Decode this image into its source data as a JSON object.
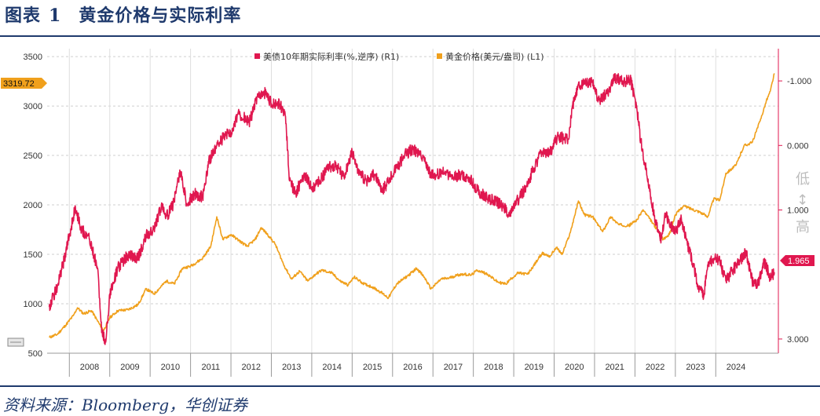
{
  "figure": {
    "label": "图表",
    "number": "1",
    "title": "黄金价格与实际利率",
    "source": "资料来源：Bloomberg，华创证券"
  },
  "colors": {
    "gold": "#f0a01c",
    "rate": "#e0174f",
    "title_blue": "#1f3a6d"
  },
  "chart_data": {
    "type": "line",
    "x_categories": [
      "2008",
      "2009",
      "2010",
      "2011",
      "2012",
      "2013",
      "2014",
      "2015",
      "2016",
      "2017",
      "2018",
      "2019",
      "2020",
      "2021",
      "2022",
      "2023",
      "2024"
    ],
    "x_range": [
      2007.45,
      2025.55
    ],
    "y_left": {
      "ticks": [
        500,
        1000,
        1500,
        2000,
        2500,
        3000,
        3500
      ],
      "tick_labels": [
        "500",
        "1000",
        "1500",
        "2000",
        "2500",
        "3000",
        "3500"
      ],
      "range": [
        500,
        3580
      ]
    },
    "y_right": {
      "ticks": [
        -1.0,
        0.0,
        1.0,
        3.0
      ],
      "tick_labels": [
        "-1.000",
        "0.000",
        "1.000",
        "3.000"
      ],
      "range": [
        -1.5,
        3.22
      ],
      "reversed": true
    },
    "side_labels": {
      "top": "低",
      "middle": "↔",
      "bottom": "高"
    },
    "legend": [
      "美债10年期实际利率(%,逆序) (R1)",
      "黄金价格(美元/盎司) (L1)"
    ],
    "last_value_tags": {
      "gold": "3319.72",
      "rate": "1.965"
    },
    "grid": "horizontal dashed",
    "series": [
      {
        "name": "黄金价格(美元/盎司) (L1)",
        "axis": "left",
        "points": [
          [
            2007.5,
            660
          ],
          [
            2007.7,
            690
          ],
          [
            2007.9,
            780
          ],
          [
            2008.1,
            880
          ],
          [
            2008.2,
            960
          ],
          [
            2008.35,
            900
          ],
          [
            2008.55,
            930
          ],
          [
            2008.75,
            790
          ],
          [
            2008.85,
            730
          ],
          [
            2009.0,
            860
          ],
          [
            2009.2,
            930
          ],
          [
            2009.45,
            940
          ],
          [
            2009.7,
            990
          ],
          [
            2009.9,
            1150
          ],
          [
            2010.1,
            1100
          ],
          [
            2010.4,
            1230
          ],
          [
            2010.6,
            1200
          ],
          [
            2010.8,
            1360
          ],
          [
            2011.0,
            1380
          ],
          [
            2011.3,
            1460
          ],
          [
            2011.5,
            1580
          ],
          [
            2011.65,
            1880
          ],
          [
            2011.8,
            1650
          ],
          [
            2012.0,
            1700
          ],
          [
            2012.2,
            1640
          ],
          [
            2012.4,
            1580
          ],
          [
            2012.6,
            1650
          ],
          [
            2012.75,
            1770
          ],
          [
            2012.95,
            1680
          ],
          [
            2013.1,
            1600
          ],
          [
            2013.3,
            1400
          ],
          [
            2013.5,
            1250
          ],
          [
            2013.7,
            1330
          ],
          [
            2013.9,
            1230
          ],
          [
            2014.1,
            1300
          ],
          [
            2014.25,
            1340
          ],
          [
            2014.5,
            1310
          ],
          [
            2014.7,
            1230
          ],
          [
            2014.9,
            1190
          ],
          [
            2015.05,
            1270
          ],
          [
            2015.3,
            1200
          ],
          [
            2015.5,
            1170
          ],
          [
            2015.7,
            1120
          ],
          [
            2015.9,
            1060
          ],
          [
            2016.1,
            1200
          ],
          [
            2016.4,
            1290
          ],
          [
            2016.6,
            1360
          ],
          [
            2016.8,
            1260
          ],
          [
            2016.95,
            1150
          ],
          [
            2017.2,
            1250
          ],
          [
            2017.4,
            1260
          ],
          [
            2017.6,
            1290
          ],
          [
            2017.75,
            1300
          ],
          [
            2017.95,
            1290
          ],
          [
            2018.1,
            1340
          ],
          [
            2018.35,
            1300
          ],
          [
            2018.6,
            1220
          ],
          [
            2018.8,
            1200
          ],
          [
            2018.95,
            1260
          ],
          [
            2019.1,
            1310
          ],
          [
            2019.35,
            1300
          ],
          [
            2019.55,
            1420
          ],
          [
            2019.7,
            1510
          ],
          [
            2019.9,
            1480
          ],
          [
            2020.05,
            1570
          ],
          [
            2020.2,
            1500
          ],
          [
            2020.4,
            1720
          ],
          [
            2020.6,
            2040
          ],
          [
            2020.75,
            1900
          ],
          [
            2020.95,
            1880
          ],
          [
            2021.2,
            1730
          ],
          [
            2021.4,
            1880
          ],
          [
            2021.6,
            1800
          ],
          [
            2021.85,
            1790
          ],
          [
            2022.05,
            1850
          ],
          [
            2022.2,
            1950
          ],
          [
            2022.45,
            1810
          ],
          [
            2022.7,
            1650
          ],
          [
            2022.85,
            1700
          ],
          [
            2023.0,
            1900
          ],
          [
            2023.2,
            1990
          ],
          [
            2023.4,
            1960
          ],
          [
            2023.6,
            1930
          ],
          [
            2023.8,
            1880
          ],
          [
            2023.95,
            2060
          ],
          [
            2024.1,
            2050
          ],
          [
            2024.25,
            2320
          ],
          [
            2024.5,
            2400
          ],
          [
            2024.7,
            2600
          ],
          [
            2024.9,
            2630
          ],
          [
            2025.1,
            2850
          ],
          [
            2025.25,
            3050
          ],
          [
            2025.35,
            3150
          ],
          [
            2025.45,
            3330
          ]
        ]
      },
      {
        "name": "美债10年期实际利率(%,逆序) (R1)",
        "axis": "right",
        "points": [
          [
            2007.5,
            2.5
          ],
          [
            2007.7,
            2.2
          ],
          [
            2007.9,
            1.7
          ],
          [
            2008.05,
            1.25
          ],
          [
            2008.15,
            0.95
          ],
          [
            2008.3,
            1.3
          ],
          [
            2008.5,
            1.45
          ],
          [
            2008.7,
            1.9
          ],
          [
            2008.8,
            2.9
          ],
          [
            2008.9,
            3.05
          ],
          [
            2009.0,
            2.3
          ],
          [
            2009.2,
            1.9
          ],
          [
            2009.45,
            1.7
          ],
          [
            2009.7,
            1.75
          ],
          [
            2009.9,
            1.4
          ],
          [
            2010.1,
            1.3
          ],
          [
            2010.3,
            0.9
          ],
          [
            2010.4,
            1.1
          ],
          [
            2010.55,
            0.95
          ],
          [
            2010.75,
            0.4
          ],
          [
            2010.9,
            0.9
          ],
          [
            2011.1,
            0.75
          ],
          [
            2011.3,
            0.8
          ],
          [
            2011.45,
            0.25
          ],
          [
            2011.65,
            0.0
          ],
          [
            2011.85,
            -0.15
          ],
          [
            2012.0,
            -0.2
          ],
          [
            2012.2,
            -0.5
          ],
          [
            2012.45,
            -0.35
          ],
          [
            2012.65,
            -0.75
          ],
          [
            2012.85,
            -0.82
          ],
          [
            2013.0,
            -0.65
          ],
          [
            2013.2,
            -0.65
          ],
          [
            2013.35,
            -0.45
          ],
          [
            2013.45,
            0.55
          ],
          [
            2013.6,
            0.75
          ],
          [
            2013.8,
            0.45
          ],
          [
            2014.0,
            0.65
          ],
          [
            2014.2,
            0.55
          ],
          [
            2014.4,
            0.35
          ],
          [
            2014.6,
            0.3
          ],
          [
            2014.8,
            0.5
          ],
          [
            2015.0,
            0.1
          ],
          [
            2015.15,
            0.4
          ],
          [
            2015.35,
            0.55
          ],
          [
            2015.55,
            0.45
          ],
          [
            2015.75,
            0.7
          ],
          [
            2015.9,
            0.55
          ],
          [
            2016.1,
            0.35
          ],
          [
            2016.3,
            0.15
          ],
          [
            2016.5,
            0.05
          ],
          [
            2016.7,
            0.15
          ],
          [
            2016.95,
            0.45
          ],
          [
            2017.1,
            0.45
          ],
          [
            2017.3,
            0.4
          ],
          [
            2017.5,
            0.5
          ],
          [
            2017.7,
            0.45
          ],
          [
            2017.9,
            0.5
          ],
          [
            2018.1,
            0.7
          ],
          [
            2018.3,
            0.8
          ],
          [
            2018.5,
            0.85
          ],
          [
            2018.75,
            0.95
          ],
          [
            2018.9,
            1.1
          ],
          [
            2019.05,
            0.9
          ],
          [
            2019.3,
            0.65
          ],
          [
            2019.5,
            0.35
          ],
          [
            2019.7,
            0.1
          ],
          [
            2019.9,
            0.1
          ],
          [
            2020.1,
            -0.15
          ],
          [
            2020.25,
            -0.1
          ],
          [
            2020.35,
            -0.1
          ],
          [
            2020.45,
            -0.6
          ],
          [
            2020.6,
            -0.95
          ],
          [
            2020.8,
            -0.95
          ],
          [
            2020.95,
            -1.0
          ],
          [
            2021.1,
            -0.7
          ],
          [
            2021.3,
            -0.8
          ],
          [
            2021.5,
            -1.05
          ],
          [
            2021.7,
            -1.0
          ],
          [
            2021.9,
            -1.0
          ],
          [
            2022.05,
            -0.55
          ],
          [
            2022.15,
            -0.05
          ],
          [
            2022.25,
            0.3
          ],
          [
            2022.35,
            0.65
          ],
          [
            2022.5,
            1.15
          ],
          [
            2022.65,
            1.45
          ],
          [
            2022.75,
            1.05
          ],
          [
            2022.85,
            1.2
          ],
          [
            2023.0,
            1.35
          ],
          [
            2023.15,
            1.15
          ],
          [
            2023.3,
            1.55
          ],
          [
            2023.45,
            1.85
          ],
          [
            2023.55,
            2.15
          ],
          [
            2023.7,
            2.35
          ],
          [
            2023.8,
            1.85
          ],
          [
            2023.95,
            1.75
          ],
          [
            2024.1,
            1.8
          ],
          [
            2024.25,
            2.1
          ],
          [
            2024.4,
            1.95
          ],
          [
            2024.6,
            1.8
          ],
          [
            2024.75,
            1.65
          ],
          [
            2024.9,
            2.1
          ],
          [
            2025.05,
            2.15
          ],
          [
            2025.2,
            1.8
          ],
          [
            2025.35,
            2.05
          ],
          [
            2025.45,
            1.965
          ]
        ]
      }
    ]
  }
}
